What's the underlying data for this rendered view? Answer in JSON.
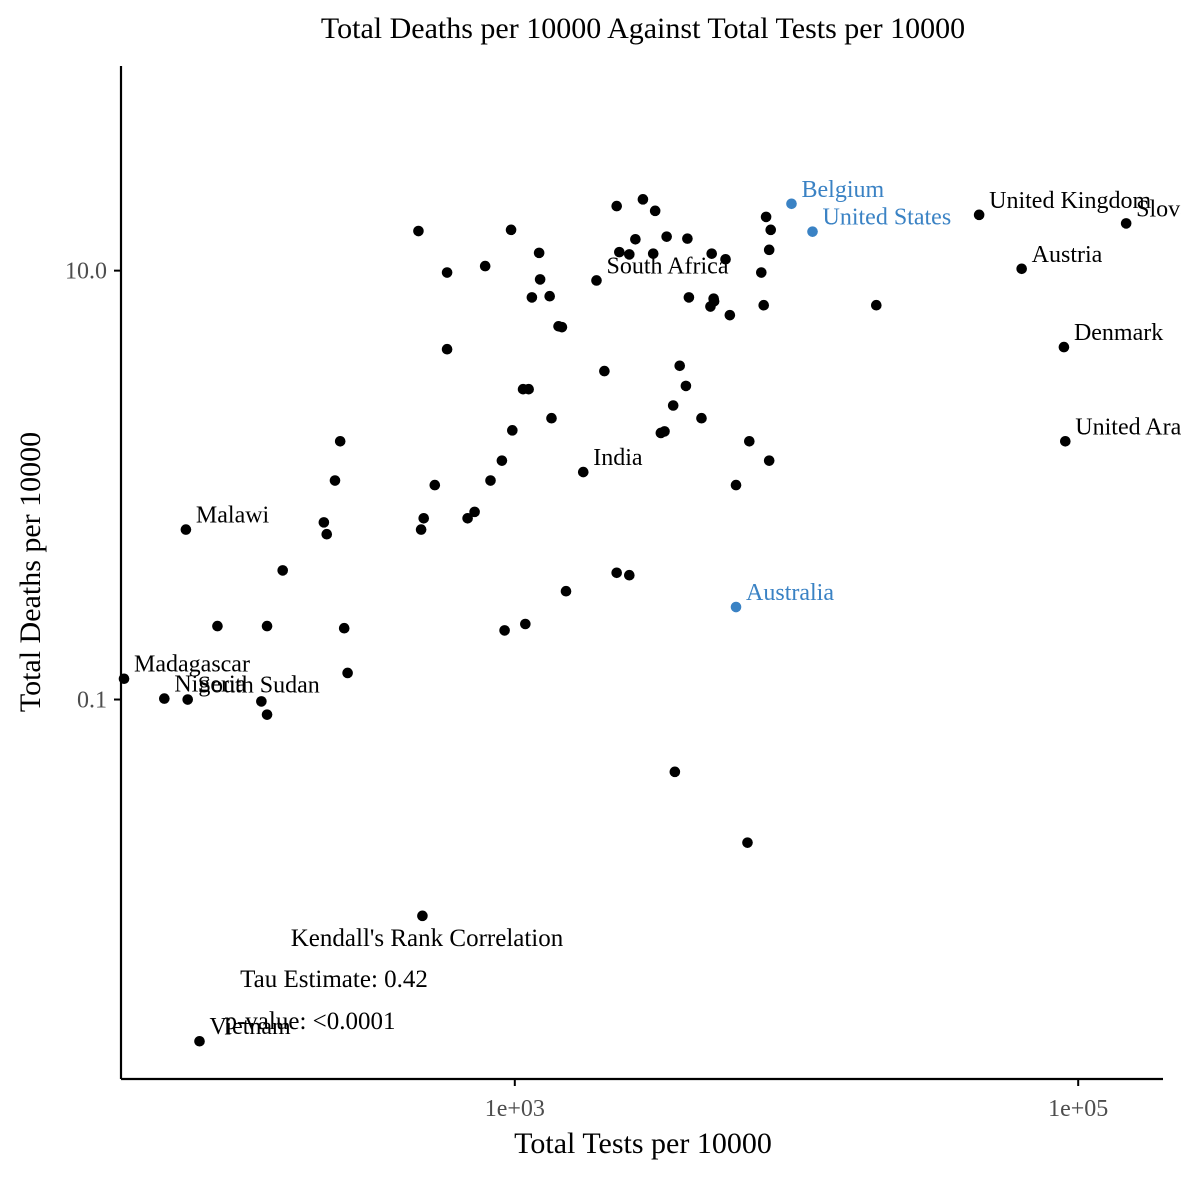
{
  "chart_data": {
    "type": "scatter",
    "title": "Total Deaths per 10000 Against Total Tests per 10000",
    "xlabel": "Total Tests per 10000",
    "ylabel": "Total Deaths per 10000",
    "x_scale": "log10",
    "y_scale": "log10",
    "xlim": [
      40,
      200000
    ],
    "ylim": [
      0.0017,
      90
    ],
    "x_ticks": [
      {
        "value": 1000,
        "label": "1e+03"
      },
      {
        "value": 100000,
        "label": "1e+05"
      }
    ],
    "y_ticks": [
      {
        "value": 10,
        "label": "10.0"
      },
      {
        "value": 0.1,
        "label": "0.1"
      }
    ],
    "grid": false,
    "legend": "none",
    "colors": {
      "default": "#000000",
      "highlight": "#3a82c4",
      "axis": "#000000",
      "tick_label": "#4d4d4d"
    },
    "points": [
      {
        "x": 44500,
        "y": 18.2,
        "label": "United Kingdom",
        "highlight": false
      },
      {
        "x": 148000,
        "y": 16.6,
        "label": "Slovakia",
        "highlight": false
      },
      {
        "x": 9600,
        "y": 20.5,
        "label": "Belgium",
        "highlight": true
      },
      {
        "x": 11400,
        "y": 15.2,
        "label": "United States",
        "highlight": true
      },
      {
        "x": 63000,
        "y": 10.2,
        "label": "Austria",
        "highlight": false
      },
      {
        "x": 1950,
        "y": 9.0,
        "label": "South Africa",
        "highlight": false
      },
      {
        "x": 89000,
        "y": 4.4,
        "label": "Denmark",
        "highlight": false
      },
      {
        "x": 90000,
        "y": 1.6,
        "label": "United Arab Emirates",
        "highlight": false
      },
      {
        "x": 1750,
        "y": 1.15,
        "label": "India",
        "highlight": false
      },
      {
        "x": 68,
        "y": 0.62,
        "label": "Malawi",
        "highlight": false
      },
      {
        "x": 6100,
        "y": 0.27,
        "label": "Australia",
        "highlight": true
      },
      {
        "x": 41,
        "y": 0.125,
        "label": "Madagascar",
        "highlight": false
      },
      {
        "x": 57,
        "y": 0.101,
        "label": "Nigeria",
        "highlight": false
      },
      {
        "x": 69,
        "y": 0.1,
        "label": "South Sudan",
        "highlight": false
      },
      {
        "x": 76,
        "y": 0.00255,
        "label": "Vietnam",
        "highlight": false
      },
      {
        "x": 2300,
        "y": 20.0,
        "label": "",
        "highlight": false
      },
      {
        "x": 3150,
        "y": 19.0,
        "label": "",
        "highlight": false
      },
      {
        "x": 2850,
        "y": 21.5,
        "label": "",
        "highlight": false
      },
      {
        "x": 7800,
        "y": 17.8,
        "label": "",
        "highlight": false
      },
      {
        "x": 8100,
        "y": 15.5,
        "label": "",
        "highlight": false
      },
      {
        "x": 455,
        "y": 15.3,
        "label": "",
        "highlight": false
      },
      {
        "x": 970,
        "y": 15.5,
        "label": "",
        "highlight": false
      },
      {
        "x": 2680,
        "y": 14.0,
        "label": "",
        "highlight": false
      },
      {
        "x": 3460,
        "y": 14.4,
        "label": "",
        "highlight": false
      },
      {
        "x": 4100,
        "y": 14.1,
        "label": "",
        "highlight": false
      },
      {
        "x": 2350,
        "y": 12.2,
        "label": "",
        "highlight": false
      },
      {
        "x": 2550,
        "y": 11.9,
        "label": "",
        "highlight": false
      },
      {
        "x": 3100,
        "y": 12.0,
        "label": "",
        "highlight": false
      },
      {
        "x": 1220,
        "y": 12.1,
        "label": "",
        "highlight": false
      },
      {
        "x": 5000,
        "y": 12.0,
        "label": "",
        "highlight": false
      },
      {
        "x": 5600,
        "y": 11.3,
        "label": "",
        "highlight": false
      },
      {
        "x": 8000,
        "y": 12.5,
        "label": "",
        "highlight": false
      },
      {
        "x": 785,
        "y": 10.5,
        "label": "",
        "highlight": false
      },
      {
        "x": 575,
        "y": 9.8,
        "label": "",
        "highlight": false
      },
      {
        "x": 7500,
        "y": 9.8,
        "label": "",
        "highlight": false
      },
      {
        "x": 1230,
        "y": 9.1,
        "label": "",
        "highlight": false
      },
      {
        "x": 1150,
        "y": 7.5,
        "label": "",
        "highlight": false
      },
      {
        "x": 1330,
        "y": 7.6,
        "label": "",
        "highlight": false
      },
      {
        "x": 4150,
        "y": 7.5,
        "label": "",
        "highlight": false
      },
      {
        "x": 5080,
        "y": 7.4,
        "label": "",
        "highlight": false
      },
      {
        "x": 7650,
        "y": 6.9,
        "label": "",
        "highlight": false
      },
      {
        "x": 4950,
        "y": 6.8,
        "label": "",
        "highlight": false
      },
      {
        "x": 19200,
        "y": 6.9,
        "label": "",
        "highlight": false
      },
      {
        "x": 5800,
        "y": 6.2,
        "label": "",
        "highlight": false
      },
      {
        "x": 1430,
        "y": 5.5,
        "label": "",
        "highlight": false
      },
      {
        "x": 1470,
        "y": 5.45,
        "label": "",
        "highlight": false
      },
      {
        "x": 5100,
        "y": 7.2,
        "label": "",
        "highlight": false
      },
      {
        "x": 575,
        "y": 4.3,
        "label": "",
        "highlight": false
      },
      {
        "x": 2080,
        "y": 3.4,
        "label": "",
        "highlight": false
      },
      {
        "x": 3850,
        "y": 3.6,
        "label": "",
        "highlight": false
      },
      {
        "x": 1070,
        "y": 2.8,
        "label": "",
        "highlight": false
      },
      {
        "x": 1120,
        "y": 2.8,
        "label": "",
        "highlight": false
      },
      {
        "x": 4050,
        "y": 2.9,
        "label": "",
        "highlight": false
      },
      {
        "x": 3650,
        "y": 2.35,
        "label": "",
        "highlight": false
      },
      {
        "x": 4600,
        "y": 2.05,
        "label": "",
        "highlight": false
      },
      {
        "x": 1350,
        "y": 2.05,
        "label": "",
        "highlight": false
      },
      {
        "x": 980,
        "y": 1.8,
        "label": "",
        "highlight": false
      },
      {
        "x": 3300,
        "y": 1.75,
        "label": "",
        "highlight": false
      },
      {
        "x": 3400,
        "y": 1.78,
        "label": "",
        "highlight": false
      },
      {
        "x": 240,
        "y": 1.6,
        "label": "",
        "highlight": false
      },
      {
        "x": 6800,
        "y": 1.6,
        "label": "",
        "highlight": false
      },
      {
        "x": 900,
        "y": 1.3,
        "label": "",
        "highlight": false
      },
      {
        "x": 8000,
        "y": 1.3,
        "label": "",
        "highlight": false
      },
      {
        "x": 230,
        "y": 1.05,
        "label": "",
        "highlight": false
      },
      {
        "x": 820,
        "y": 1.05,
        "label": "",
        "highlight": false
      },
      {
        "x": 520,
        "y": 1.0,
        "label": "",
        "highlight": false
      },
      {
        "x": 6100,
        "y": 1.0,
        "label": "",
        "highlight": false
      },
      {
        "x": 720,
        "y": 0.75,
        "label": "",
        "highlight": false
      },
      {
        "x": 680,
        "y": 0.7,
        "label": "",
        "highlight": false
      },
      {
        "x": 475,
        "y": 0.7,
        "label": "",
        "highlight": false
      },
      {
        "x": 210,
        "y": 0.67,
        "label": "",
        "highlight": false
      },
      {
        "x": 465,
        "y": 0.62,
        "label": "",
        "highlight": false
      },
      {
        "x": 215,
        "y": 0.59,
        "label": "",
        "highlight": false
      },
      {
        "x": 150,
        "y": 0.4,
        "label": "",
        "highlight": false
      },
      {
        "x": 2300,
        "y": 0.39,
        "label": "",
        "highlight": false
      },
      {
        "x": 2550,
        "y": 0.38,
        "label": "",
        "highlight": false
      },
      {
        "x": 1520,
        "y": 0.32,
        "label": "",
        "highlight": false
      },
      {
        "x": 88,
        "y": 0.22,
        "label": "",
        "highlight": false
      },
      {
        "x": 132,
        "y": 0.22,
        "label": "",
        "highlight": false
      },
      {
        "x": 248,
        "y": 0.215,
        "label": "",
        "highlight": false
      },
      {
        "x": 1090,
        "y": 0.225,
        "label": "",
        "highlight": false
      },
      {
        "x": 920,
        "y": 0.21,
        "label": "",
        "highlight": false
      },
      {
        "x": 255,
        "y": 0.133,
        "label": "",
        "highlight": false
      },
      {
        "x": 126,
        "y": 0.098,
        "label": "",
        "highlight": false
      },
      {
        "x": 132,
        "y": 0.085,
        "label": "",
        "highlight": false
      },
      {
        "x": 3700,
        "y": 0.046,
        "label": "",
        "highlight": false
      },
      {
        "x": 6700,
        "y": 0.0215,
        "label": "",
        "highlight": false
      },
      {
        "x": 470,
        "y": 0.0098,
        "label": "",
        "highlight": false
      }
    ],
    "annotation": {
      "title": "Kendall's Rank Correlation",
      "tau": "Tau Estimate: 0.42",
      "pvalue": "p-value: <0.0001"
    }
  }
}
